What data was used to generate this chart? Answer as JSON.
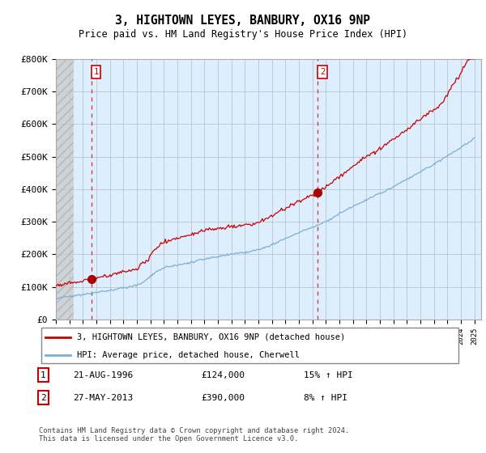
{
  "title": "3, HIGHTOWN LEYES, BANBURY, OX16 9NP",
  "subtitle": "Price paid vs. HM Land Registry's House Price Index (HPI)",
  "ylim": [
    0,
    800000
  ],
  "yticks": [
    0,
    100000,
    200000,
    300000,
    400000,
    500000,
    600000,
    700000,
    800000
  ],
  "ytick_labels": [
    "£0",
    "£100K",
    "£200K",
    "£300K",
    "£400K",
    "£500K",
    "£600K",
    "£700K",
    "£800K"
  ],
  "line1_color": "#cc0000",
  "line2_color": "#7bafd4",
  "marker_color": "#aa0000",
  "bg_fill": "#ddeeff",
  "sale1_year": 1996.64,
  "sale1_price": 124000,
  "sale2_year": 2013.4,
  "sale2_price": 390000,
  "legend1": "3, HIGHTOWN LEYES, BANBURY, OX16 9NP (detached house)",
  "legend2": "HPI: Average price, detached house, Cherwell",
  "table_row1_num": "1",
  "table_row1_date": "21-AUG-1996",
  "table_row1_price": "£124,000",
  "table_row1_hpi": "15% ↑ HPI",
  "table_row2_num": "2",
  "table_row2_date": "27-MAY-2013",
  "table_row2_price": "£390,000",
  "table_row2_hpi": "8% ↑ HPI",
  "footer": "Contains HM Land Registry data © Crown copyright and database right 2024.\nThis data is licensed under the Open Government Licence v3.0.",
  "bg_color": "#ffffff",
  "grid_color": "#cccccc"
}
